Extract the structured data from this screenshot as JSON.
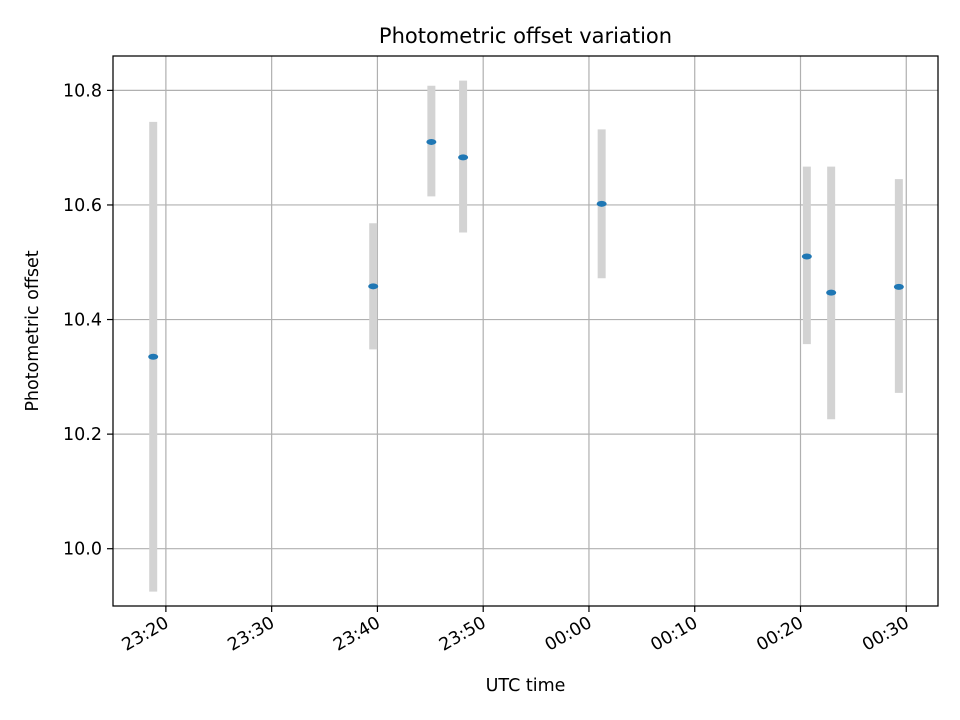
{
  "chart_data": {
    "type": "scatter",
    "title": "Photometric offset variation",
    "xlabel": "UTC time",
    "ylabel": "Photometric offset",
    "x_tick_labels": [
      "23:20",
      "23:30",
      "23:40",
      "23:50",
      "00:00",
      "00:10",
      "00:20",
      "00:30"
    ],
    "x_tick_minutes": [
      0,
      10,
      20,
      30,
      40,
      50,
      60,
      70
    ],
    "y_tick_labels": [
      "10.0",
      "10.2",
      "10.4",
      "10.6",
      "10.8"
    ],
    "y_tick_values": [
      10.0,
      10.2,
      10.4,
      10.6,
      10.8
    ],
    "xlim_minutes": [
      -5,
      73
    ],
    "ylim": [
      9.9,
      10.86
    ],
    "grid": true,
    "colors": {
      "points": "#1f77b4",
      "errorbars": "#d3d3d3",
      "grid": "#b0b0b0"
    },
    "series": [
      {
        "points": [
          {
            "time": "23:18:50",
            "t": -1.2,
            "y": 10.335,
            "err_low": 9.925,
            "err_high": 10.745
          },
          {
            "time": "23:39:35",
            "t": 19.6,
            "y": 10.458,
            "err_low": 10.348,
            "err_high": 10.568
          },
          {
            "time": "23:45:05",
            "t": 25.1,
            "y": 10.71,
            "err_low": 10.615,
            "err_high": 10.808
          },
          {
            "time": "23:48:05",
            "t": 28.1,
            "y": 10.683,
            "err_low": 10.552,
            "err_high": 10.817
          },
          {
            "time": "00:01:10",
            "t": 41.2,
            "y": 10.602,
            "err_low": 10.472,
            "err_high": 10.732
          },
          {
            "time": "00:20:35",
            "t": 60.6,
            "y": 10.51,
            "err_low": 10.357,
            "err_high": 10.667
          },
          {
            "time": "00:22:55",
            "t": 62.9,
            "y": 10.447,
            "err_low": 10.226,
            "err_high": 10.667
          },
          {
            "time": "00:29:15",
            "t": 69.3,
            "y": 10.457,
            "err_low": 10.272,
            "err_high": 10.645
          }
        ]
      }
    ]
  }
}
